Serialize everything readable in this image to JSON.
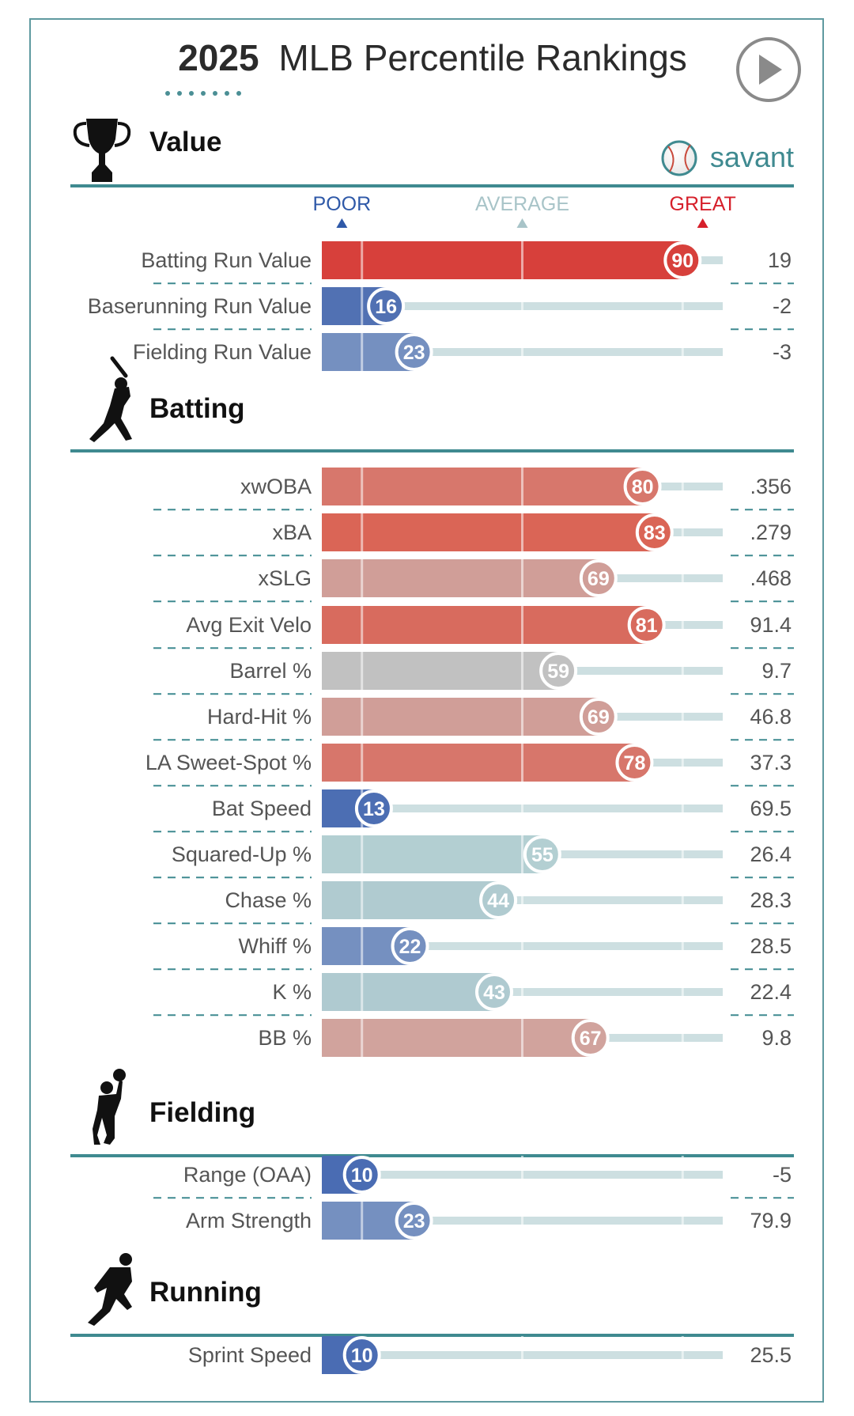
{
  "title": {
    "year": "2025",
    "rest": "MLB Percentile Rankings"
  },
  "brand": {
    "name": "savant"
  },
  "scale_labels": {
    "poor": "POOR",
    "average": "AVERAGE",
    "great": "GREAT"
  },
  "colors": {
    "teal": "#3f8a90",
    "poor": "#2f59a8",
    "great": "#d6202b",
    "track": "#cddfe1"
  },
  "icons": {
    "play": "play-button-icon",
    "value": "trophy-icon",
    "batting": "batter-silhouette-icon",
    "fielding": "fielder-silhouette-icon",
    "running": "runner-silhouette-icon",
    "brand": "baseball-icon"
  },
  "chart_data": {
    "type": "bar",
    "orientation": "horizontal",
    "xlim": [
      0,
      100
    ],
    "sections": [
      {
        "key": "value",
        "name": "Value",
        "metrics": [
          {
            "label": "Batting Run Value",
            "percentile": 90,
            "value": "19",
            "color": "#d7403b"
          },
          {
            "label": "Baserunning Run Value",
            "percentile": 16,
            "value": "-2",
            "color": "#5171b3"
          },
          {
            "label": "Fielding Run Value",
            "percentile": 23,
            "value": "-3",
            "color": "#7590c0"
          }
        ]
      },
      {
        "key": "batting",
        "name": "Batting",
        "metrics": [
          {
            "label": "xwOBA",
            "percentile": 80,
            "value": ".356",
            "color": "#d7776c"
          },
          {
            "label": "xBA",
            "percentile": 83,
            "value": ".279",
            "color": "#da6556"
          },
          {
            "label": "xSLG",
            "percentile": 69,
            "value": ".468",
            "color": "#d09e98"
          },
          {
            "label": "Avg Exit Velo",
            "percentile": 81,
            "value": "91.4",
            "color": "#d86b5e"
          },
          {
            "label": "Barrel %",
            "percentile": 59,
            "value": "9.7",
            "color": "#c1c1c1"
          },
          {
            "label": "Hard-Hit %",
            "percentile": 69,
            "value": "46.8",
            "color": "#d09e98"
          },
          {
            "label": "LA Sweet-Spot %",
            "percentile": 78,
            "value": "37.3",
            "color": "#d7766b"
          },
          {
            "label": "Bat Speed",
            "percentile": 13,
            "value": "69.5",
            "color": "#4c6eb3"
          },
          {
            "label": "Squared-Up %",
            "percentile": 55,
            "value": "26.4",
            "color": "#b3cfd2"
          },
          {
            "label": "Chase %",
            "percentile": 44,
            "value": "28.3",
            "color": "#b0cbd0"
          },
          {
            "label": "Whiff %",
            "percentile": 22,
            "value": "28.5",
            "color": "#7590c0"
          },
          {
            "label": "K %",
            "percentile": 43,
            "value": "22.4",
            "color": "#afcad0"
          },
          {
            "label": "BB %",
            "percentile": 67,
            "value": "9.8",
            "color": "#d1a39d"
          }
        ]
      },
      {
        "key": "fielding",
        "name": "Fielding",
        "metrics": [
          {
            "label": "Range (OAA)",
            "percentile": 10,
            "value": "-5",
            "color": "#4a6cb3"
          },
          {
            "label": "Arm Strength",
            "percentile": 23,
            "value": "79.9",
            "color": "#7590c0"
          }
        ]
      },
      {
        "key": "running",
        "name": "Running",
        "metrics": [
          {
            "label": "Sprint Speed",
            "percentile": 10,
            "value": "25.5",
            "color": "#4a6cb3"
          }
        ]
      }
    ]
  }
}
